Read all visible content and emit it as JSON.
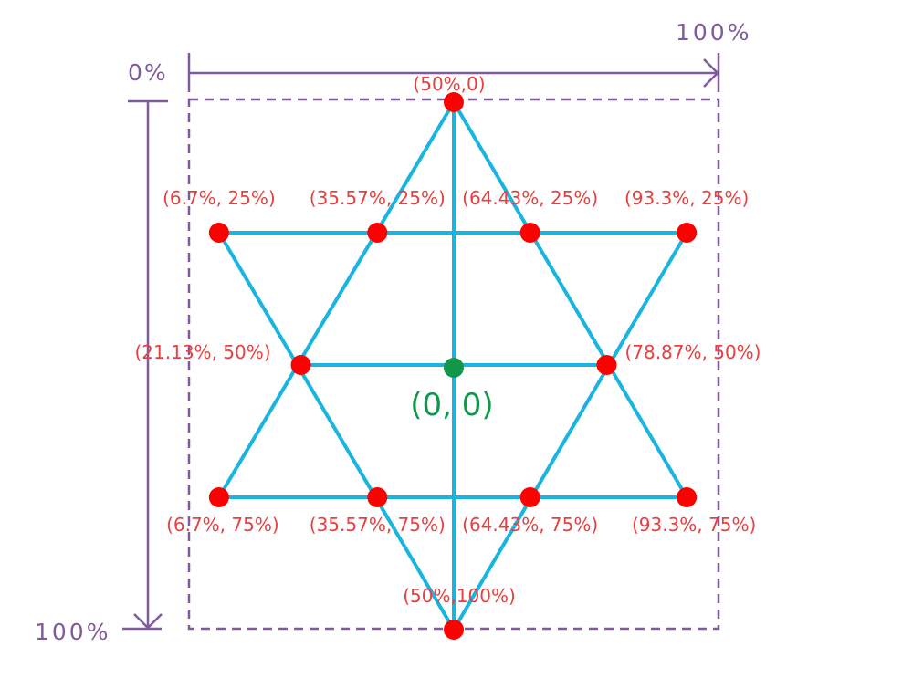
{
  "colors": {
    "axis": "#7f5a9e",
    "line": "#1ab4e0",
    "point": "#ff0000",
    "label": "#e84040",
    "origin": "#12964a"
  },
  "axes": {
    "x_start_label": "0%",
    "x_end_label": "100%",
    "y_end_label": "100%"
  },
  "origin": {
    "label": "(0, 0)",
    "x_pct": 50,
    "y_pct": 50
  },
  "points": [
    {
      "label": "(50%,0)",
      "x_pct": 50,
      "y_pct": 0
    },
    {
      "label": "(6.7%, 25%)",
      "x_pct": 6.7,
      "y_pct": 25
    },
    {
      "label": "(35.57%, 25%)",
      "x_pct": 35.57,
      "y_pct": 25
    },
    {
      "label": "(64.43%, 25%)",
      "x_pct": 64.43,
      "y_pct": 25
    },
    {
      "label": "(93.3%, 25%)",
      "x_pct": 93.3,
      "y_pct": 25
    },
    {
      "label": "(21.13%, 50%)",
      "x_pct": 21.13,
      "y_pct": 50
    },
    {
      "label": "(78.87%, 50%)",
      "x_pct": 78.87,
      "y_pct": 50
    },
    {
      "label": "(6.7%, 75%)",
      "x_pct": 6.7,
      "y_pct": 75
    },
    {
      "label": "(35.57%, 75%)",
      "x_pct": 35.57,
      "y_pct": 75
    },
    {
      "label": "(64.43%, 75%)",
      "x_pct": 64.43,
      "y_pct": 75
    },
    {
      "label": "(93.3%, 75%)",
      "x_pct": 93.3,
      "y_pct": 75
    },
    {
      "label": "(50%,100%)",
      "x_pct": 50,
      "y_pct": 100
    }
  ]
}
